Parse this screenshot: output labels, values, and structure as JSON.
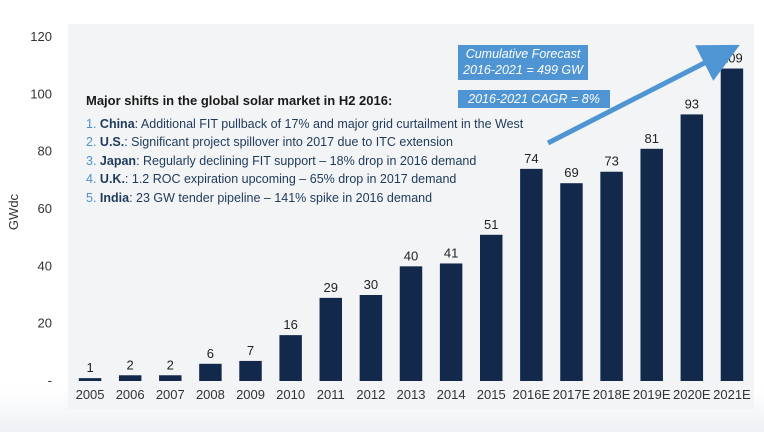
{
  "chart_data": {
    "type": "bar",
    "ylabel": "GWdc",
    "xlabel": "",
    "ylim": [
      0,
      120
    ],
    "y_ticks": [
      "-",
      "20",
      "40",
      "60",
      "80",
      "100",
      "120"
    ],
    "categories": [
      "2005",
      "2006",
      "2007",
      "2008",
      "2009",
      "2010",
      "2011",
      "2012",
      "2013",
      "2014",
      "2015",
      "2016E",
      "2017E",
      "2018E",
      "2019E",
      "2020E",
      "2021E"
    ],
    "values": [
      1,
      2,
      2,
      6,
      7,
      16,
      29,
      30,
      40,
      41,
      51,
      74,
      69,
      73,
      81,
      93,
      109
    ],
    "bar_color": "#13294b",
    "grid": false
  },
  "notes": {
    "title": "Major shifts in the global solar market in H2 2016:",
    "items": [
      {
        "num": "1.",
        "country": "China",
        "detail": ": Additional FIT pullback of 17% and major grid curtailment in the West"
      },
      {
        "num": "2.",
        "country": "U.S.",
        "detail": ": Significant project spillover into 2017 due to ITC extension"
      },
      {
        "num": "3.",
        "country": "Japan",
        "detail": ": Regularly declining FIT support – 18% drop in 2016 demand"
      },
      {
        "num": "4.",
        "country": "U.K.",
        "detail": ": 1.2 ROC expiration upcoming – 65% drop in 2017 demand"
      },
      {
        "num": "5.",
        "country": "India",
        "detail": ": 23 GW tender pipeline – 141% spike in 2016 demand"
      }
    ]
  },
  "callouts": {
    "forecast_line1": "Cumulative Forecast",
    "forecast_line2": "2016-2021 = 499 GW",
    "cagr": "2016-2021 CAGR = 8%"
  },
  "colors": {
    "accent": "#4f95d3",
    "bar": "#13294b"
  }
}
